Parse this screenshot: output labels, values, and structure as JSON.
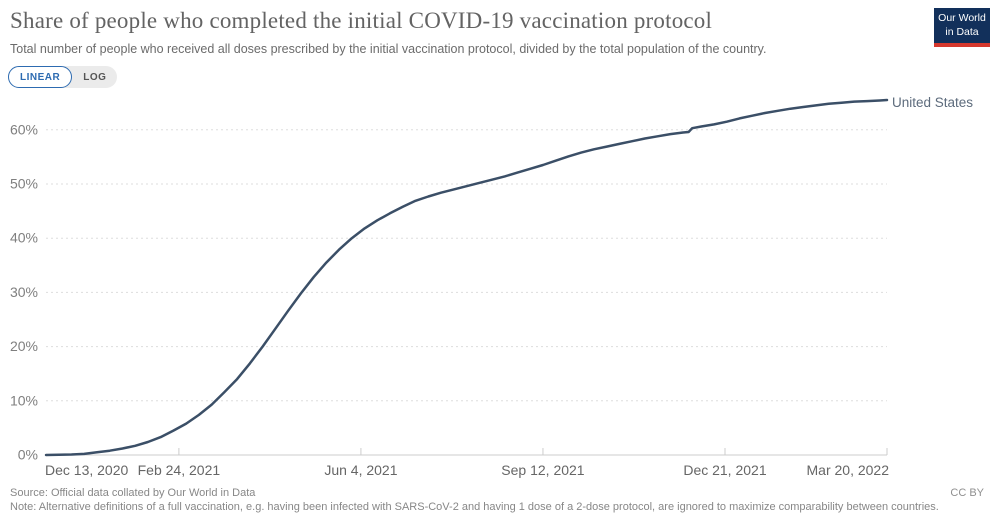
{
  "header": {
    "title": "Share of people who completed the initial COVID-19 vaccination protocol",
    "subtitle": "Total number of people who received all doses prescribed by the initial vaccination protocol, divided by the total population of the country."
  },
  "logo": {
    "line1": "Our World",
    "line2": "in Data"
  },
  "controls": {
    "linear_label": "LINEAR",
    "log_label": "LOG",
    "selected": "LINEAR"
  },
  "footer": {
    "source": "Source: Official data collated by Our World in Data",
    "note": "Note: Alternative definitions of a full vaccination, e.g. having been infected with SARS-CoV-2 and having 1 dose of a 2-dose protocol, are ignored to maximize comparability between countries.",
    "license": "CC BY"
  },
  "colors": {
    "line": "#3b4f67",
    "entity_label": "#5d6b7c",
    "grid": "#dddddd",
    "axis": "#cccccc",
    "y_tick_label": "#7f7f7f",
    "x_tick_label": "#666666",
    "accent_blue": "#2d6bb1",
    "logo_bg": "#12305b",
    "logo_red": "#d5382e"
  },
  "chart_data": {
    "type": "line",
    "title": "Share of people who completed the initial COVID-19 vaccination protocol",
    "ylabel": "",
    "xlabel": "",
    "y_ticks": [
      0,
      10,
      20,
      30,
      40,
      50,
      60
    ],
    "y_tick_suffix": "%",
    "ylim": [
      0,
      66
    ],
    "grid": "horizontal-dotted",
    "legend_position": "end-of-line-label",
    "x_range": [
      "2020-12-13",
      "2022-03-20"
    ],
    "x_ticks": [
      "Dec 13, 2020",
      "Feb 24, 2021",
      "Jun 4, 2021",
      "Sep 12, 2021",
      "Dec 21, 2021",
      "Mar 20, 2022"
    ],
    "x_tick_dates": [
      "2020-12-13",
      "2021-02-24",
      "2021-06-04",
      "2021-09-12",
      "2021-12-21",
      "2022-03-20"
    ],
    "series": [
      {
        "name": "United States",
        "color": "#3b4f67",
        "dates": [
          "2020-12-13",
          "2020-12-20",
          "2020-12-27",
          "2021-01-03",
          "2021-01-10",
          "2021-01-17",
          "2021-01-24",
          "2021-01-31",
          "2021-02-07",
          "2021-02-14",
          "2021-02-21",
          "2021-02-28",
          "2021-03-07",
          "2021-03-14",
          "2021-03-21",
          "2021-03-28",
          "2021-04-04",
          "2021-04-11",
          "2021-04-18",
          "2021-04-25",
          "2021-05-02",
          "2021-05-09",
          "2021-05-16",
          "2021-05-23",
          "2021-05-30",
          "2021-06-06",
          "2021-06-13",
          "2021-06-20",
          "2021-06-27",
          "2021-07-04",
          "2021-07-11",
          "2021-07-18",
          "2021-07-25",
          "2021-08-01",
          "2021-08-08",
          "2021-08-15",
          "2021-08-22",
          "2021-08-29",
          "2021-09-05",
          "2021-09-12",
          "2021-09-19",
          "2021-09-26",
          "2021-10-03",
          "2021-10-10",
          "2021-10-17",
          "2021-10-24",
          "2021-10-31",
          "2021-11-07",
          "2021-11-14",
          "2021-11-21",
          "2021-11-28",
          "2021-12-01",
          "2021-12-03",
          "2021-12-08",
          "2021-12-15",
          "2021-12-22",
          "2021-12-29",
          "2022-01-05",
          "2022-01-12",
          "2022-01-19",
          "2022-01-26",
          "2022-02-02",
          "2022-02-09",
          "2022-02-16",
          "2022-02-23",
          "2022-03-02",
          "2022-03-09",
          "2022-03-16",
          "2022-03-20"
        ],
        "values": [
          0,
          0.05,
          0.1,
          0.2,
          0.5,
          0.8,
          1.2,
          1.7,
          2.4,
          3.3,
          4.5,
          5.8,
          7.4,
          9.3,
          11.6,
          14.0,
          16.9,
          20.0,
          23.3,
          26.6,
          29.8,
          32.8,
          35.5,
          37.9,
          40.0,
          41.8,
          43.3,
          44.6,
          45.8,
          46.9,
          47.7,
          48.4,
          49.0,
          49.6,
          50.2,
          50.8,
          51.4,
          52.1,
          52.8,
          53.5,
          54.3,
          55.1,
          55.8,
          56.4,
          56.9,
          57.4,
          57.9,
          58.4,
          58.8,
          59.2,
          59.5,
          59.6,
          60.3,
          60.6,
          61.0,
          61.5,
          62.1,
          62.6,
          63.1,
          63.5,
          63.9,
          64.2,
          64.5,
          64.8,
          65.0,
          65.2,
          65.3,
          65.4,
          65.5
        ]
      }
    ]
  }
}
